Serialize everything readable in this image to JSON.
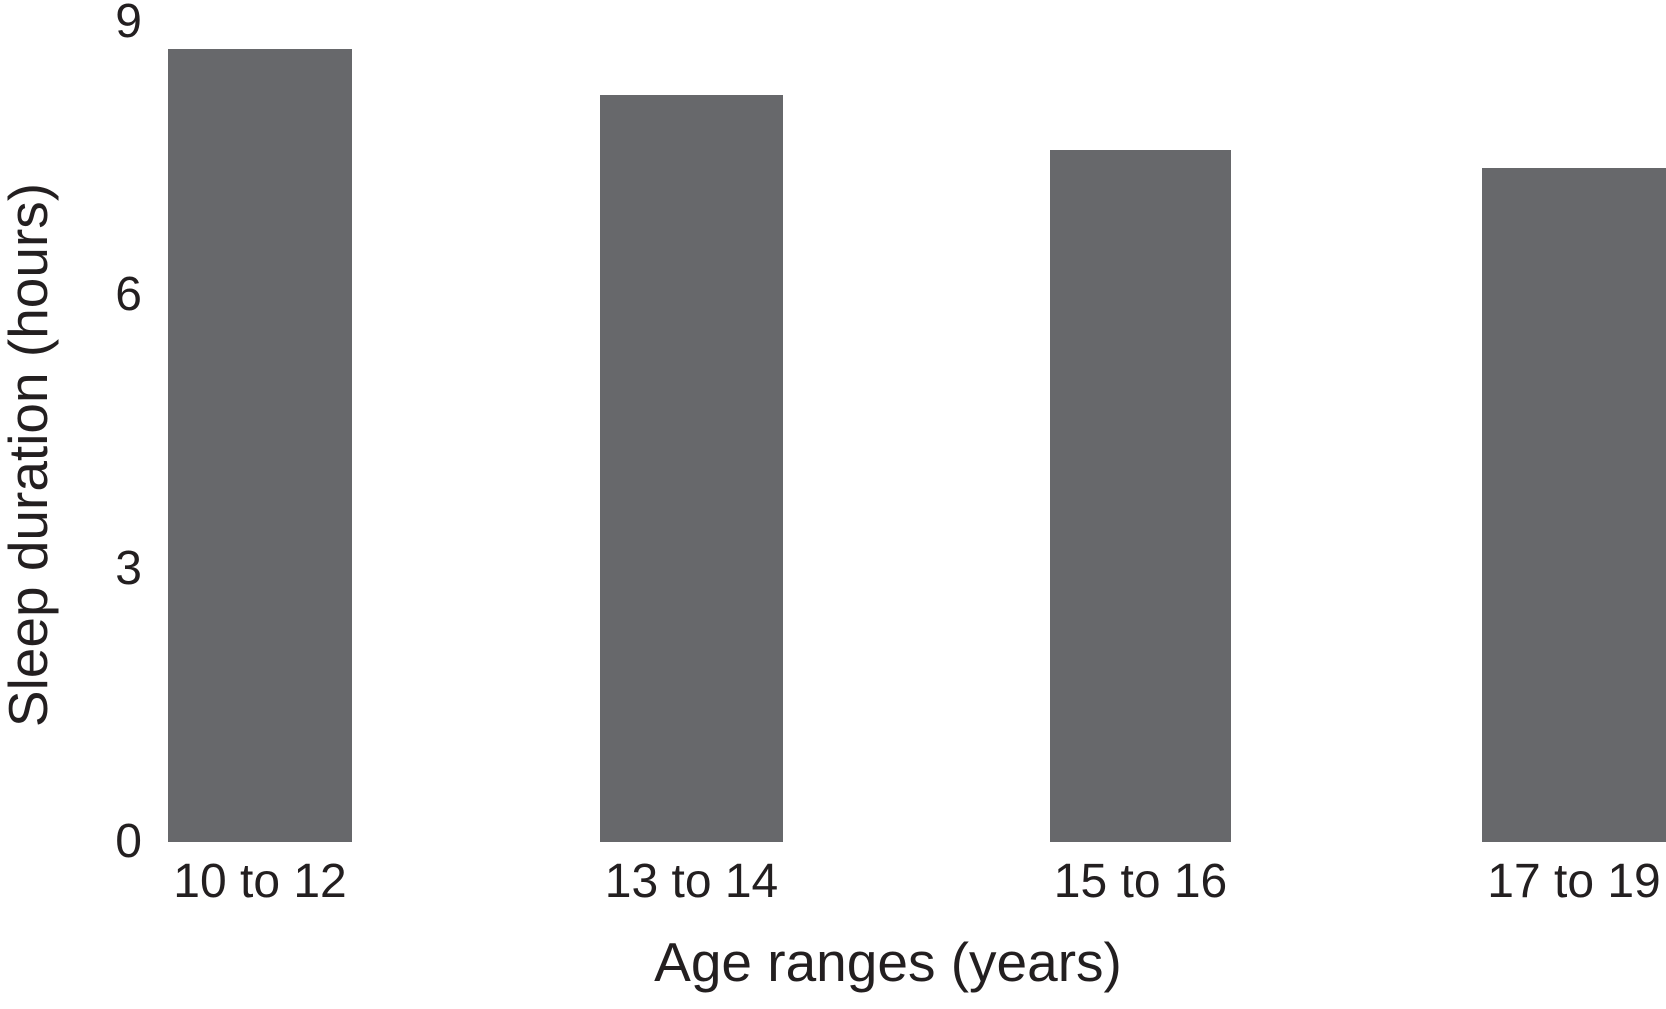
{
  "chart_data": {
    "type": "bar",
    "categories": [
      "10 to 12",
      "13 to 14",
      "15 to 16",
      "17 to 19"
    ],
    "values": [
      8.7,
      8.2,
      7.6,
      7.4
    ],
    "title": "",
    "xlabel": "Age ranges (years)",
    "ylabel": "Sleep duration (hours)",
    "ylim": [
      0,
      9
    ],
    "yticks": [
      0,
      3,
      6,
      9
    ],
    "bar_color": "#67686b",
    "text_color": "#231f20",
    "background_color": "#ffffff",
    "grid": false,
    "legend": false,
    "axis_lines": false,
    "note": "fourth bar is clipped by the right edge of the figure"
  }
}
